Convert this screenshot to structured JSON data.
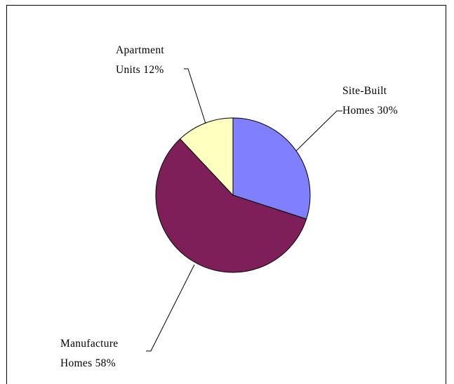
{
  "chart_data": {
    "type": "pie",
    "categories": [
      "Site-Built Homes",
      "Manufacture Homes",
      "Apartment Units"
    ],
    "values": [
      30,
      58,
      12
    ],
    "value_labels": [
      "30%",
      "58%",
      "12%"
    ],
    "colors": [
      "#8080ff",
      "#7f1f5a",
      "#ffffc0"
    ]
  }
}
